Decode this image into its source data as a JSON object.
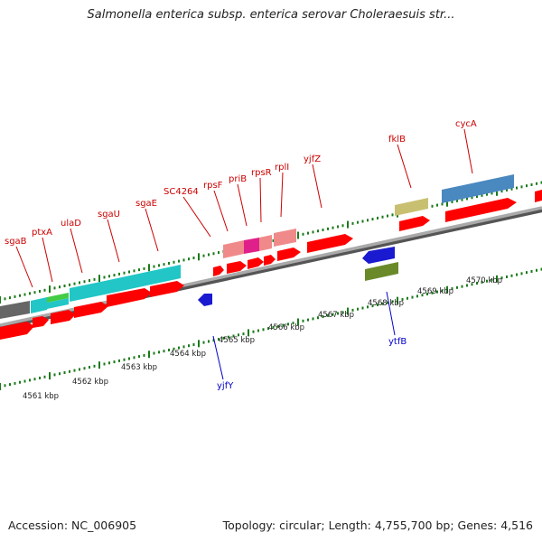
{
  "title": "Salmonella enterica subsp. enterica serovar Choleraesuis str...",
  "accession": "Accession: NC_006905",
  "summary": "Topology: circular; Length: 4,755,700 bp; Genes: 4,516",
  "colors": {
    "forward_label": "#cc0000",
    "reverse_label": "#0000cc",
    "cds_red": "#ff0000",
    "tick_green": "#1a7a1a"
  },
  "kbp_labels": [
    "4561 kbp",
    "4562 kbp",
    "4563 kbp",
    "4564 kbp",
    "4565 kbp",
    "4566 kbp",
    "4567 kbp",
    "4568 kbp",
    "4569 kbp",
    "4570 kbp"
  ],
  "forward_genes": [
    "sgaB",
    "ptxA",
    "ulaD",
    "sgaU",
    "sgaE",
    "SC4264",
    "rpsF",
    "priB",
    "rpsR",
    "rplI",
    "yjfZ",
    "fklB",
    "cycA"
  ],
  "reverse_genes": [
    "yjfY",
    "ytfB"
  ]
}
